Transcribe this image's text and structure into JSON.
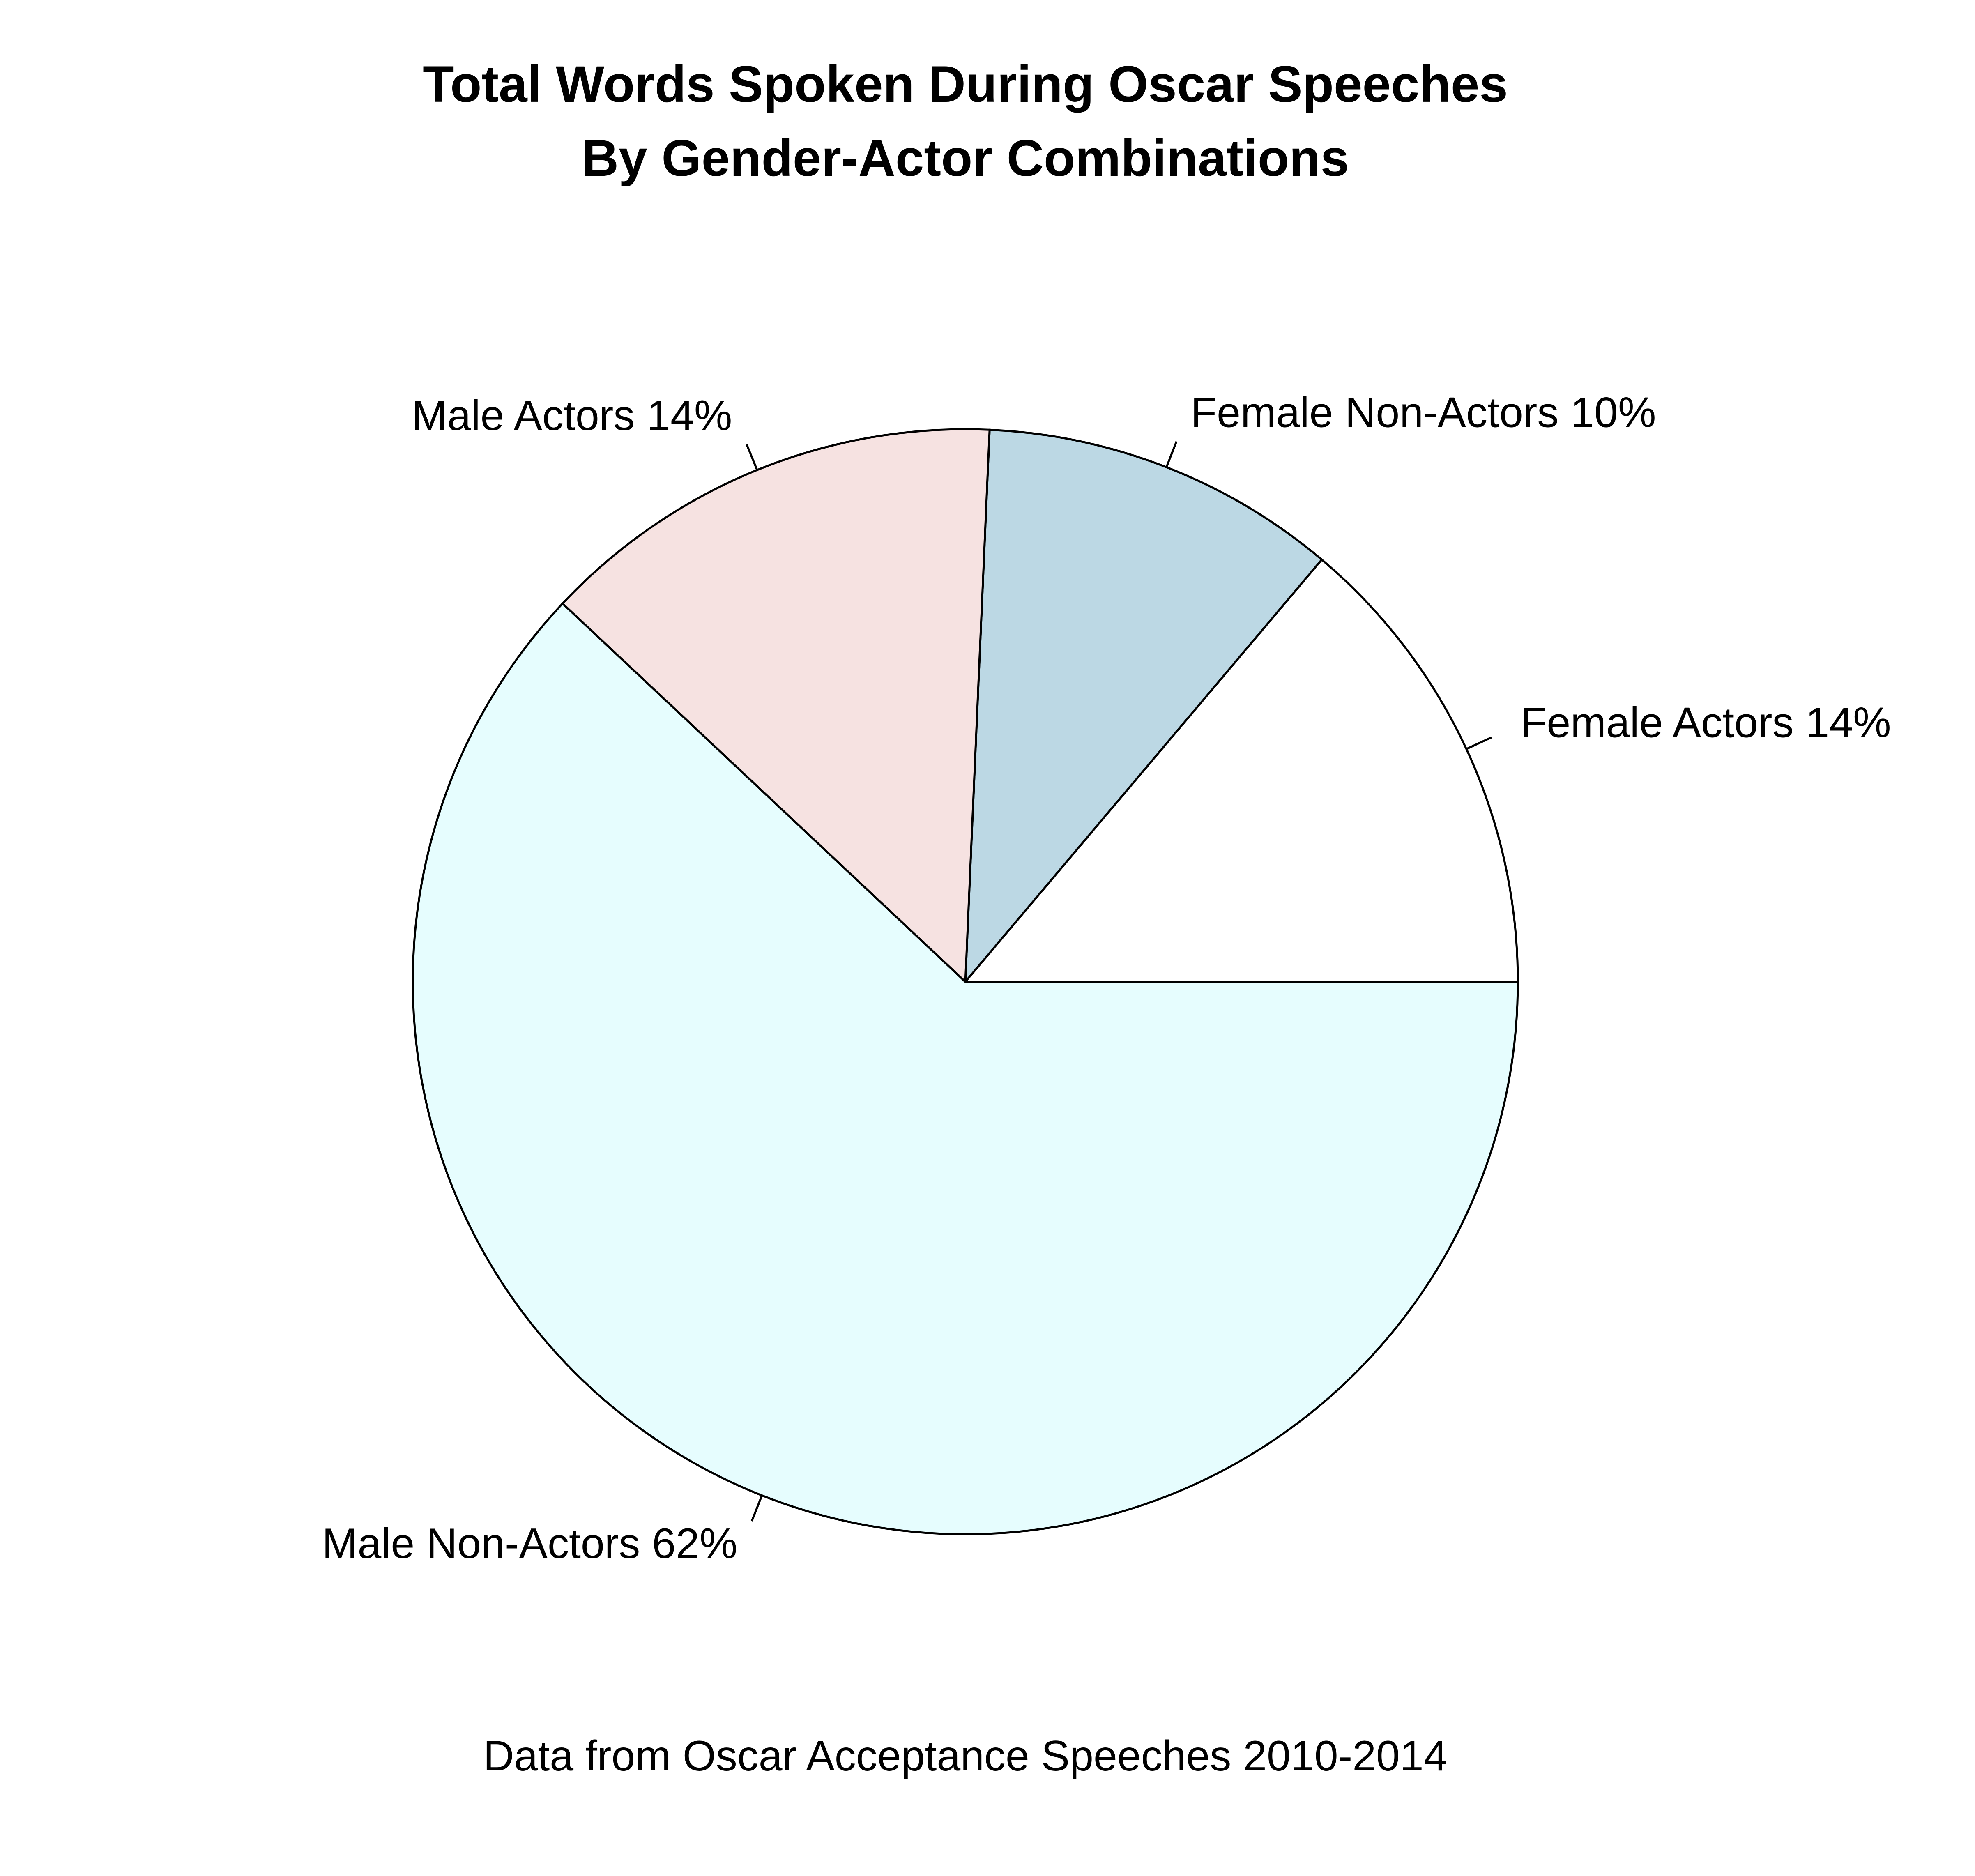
{
  "chart_data": {
    "type": "pie",
    "title": "Total Words Spoken During Oscar Speeches",
    "subtitle": "By Gender-Actor Combinations",
    "caption": "Data from Oscar Acceptance Speeches 2010-2014",
    "direction": "counterclockwise",
    "start_angle_deg": 0,
    "slices": [
      {
        "label": "Female Actors 14%",
        "value": 13.84,
        "color": "#ffffff"
      },
      {
        "label": "Female Non-Actors 10%",
        "value": 10.46,
        "color": "#bcd8e4"
      },
      {
        "label": "Male Actors 14%",
        "value": 13.7,
        "color": "#f6e2e1"
      },
      {
        "label": "Male Non-Actors 62%",
        "value": 62.0,
        "color": "#e6fdfe"
      }
    ]
  }
}
